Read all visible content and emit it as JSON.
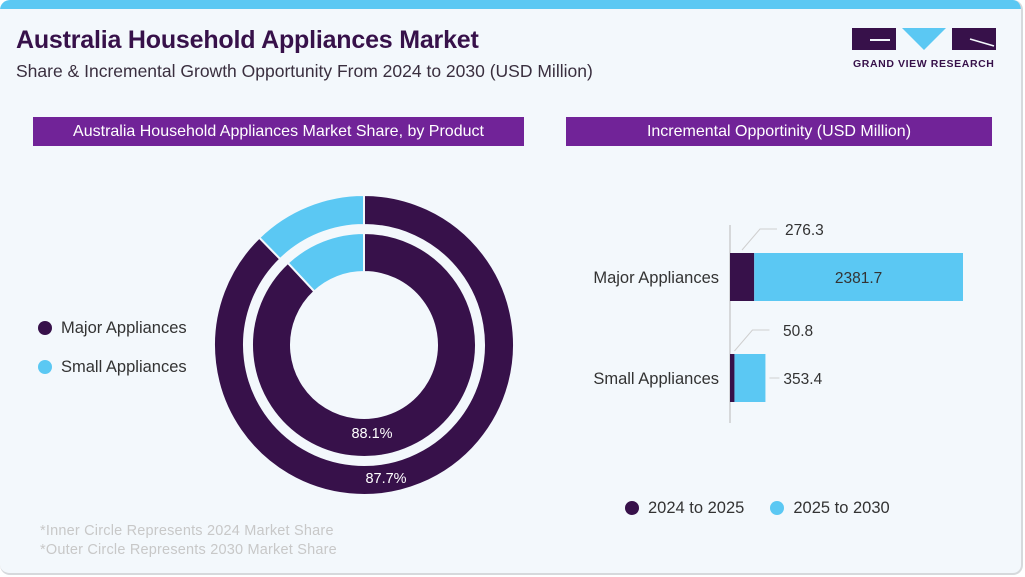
{
  "header": {
    "title": "Australia Household Appliances Market",
    "subtitle": "Share & Incremental Growth Opportunity From 2024 to 2030 (USD Million)",
    "brand": "GRAND VIEW RESEARCH"
  },
  "colors": {
    "major": "#37114a",
    "small": "#5bc8f3",
    "panel_header": "#712398",
    "accent_bar": "#5bc8f3"
  },
  "panels": {
    "left_title": "Australia Household Appliances Market Share, by Product",
    "right_title": "Incremental Opportinity (USD Million)"
  },
  "footnotes": [
    "*Inner Circle Represents 2024 Market Share",
    "*Outer Circle Represents 2030 Market Share"
  ],
  "chart_data": [
    {
      "type": "pie",
      "subtype": "nested-donut",
      "title": "Australia Household Appliances Market Share, by Product",
      "legend": [
        "Major Appliances",
        "Small Appliances"
      ],
      "legend_position": "left",
      "rings": [
        {
          "name": "2024 (inner)",
          "categories": [
            "Major Appliances",
            "Small Appliances"
          ],
          "values": [
            88.1,
            11.9
          ],
          "labels": [
            "88.1%",
            ""
          ]
        },
        {
          "name": "2030 (outer)",
          "categories": [
            "Major Appliances",
            "Small Appliances"
          ],
          "values": [
            87.7,
            12.3
          ],
          "labels": [
            "87.7%",
            ""
          ]
        }
      ]
    },
    {
      "type": "bar",
      "orientation": "horizontal",
      "stacked": true,
      "title": "Incremental Opportinity (USD Million)",
      "categories": [
        "Major Appliances",
        "Small Appliances"
      ],
      "series": [
        {
          "name": "2024 to 2025",
          "values": [
            276.3,
            50.8
          ]
        },
        {
          "name": "2025 to 2030",
          "values": [
            2381.7,
            353.4
          ]
        }
      ],
      "data_labels": [
        [
          "276.3",
          "50.8"
        ],
        [
          "2381.7",
          "353.4"
        ]
      ],
      "legend": [
        "2024 to 2025",
        "2025 to 2030"
      ],
      "legend_position": "bottom",
      "grid": false
    }
  ]
}
